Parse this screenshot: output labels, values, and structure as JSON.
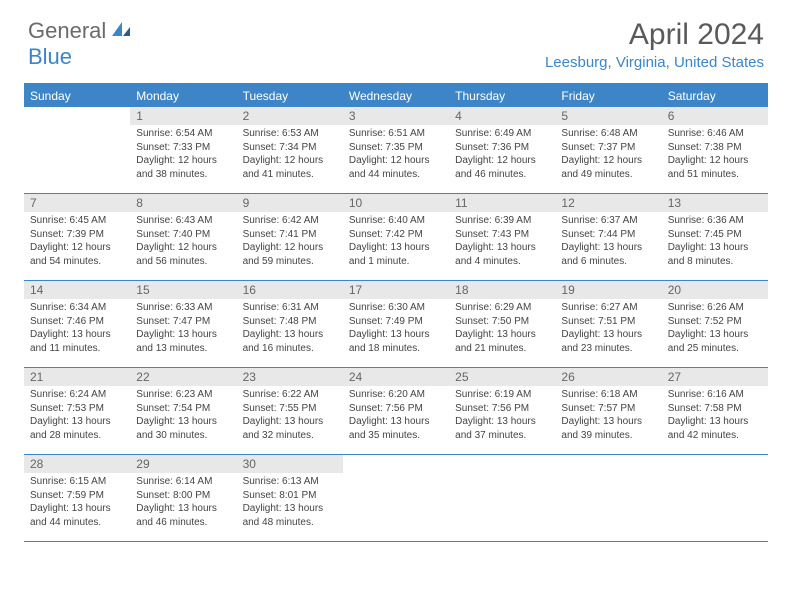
{
  "logo": {
    "part1": "General",
    "part2": "Blue"
  },
  "title": "April 2024",
  "location": "Leesburg, Virginia, United States",
  "colors": {
    "accent": "#3d85c6",
    "header_bg": "#3d85c6",
    "header_text": "#ffffff",
    "date_bar_bg": "#e8e8e8",
    "date_bar_text": "#666666",
    "body_text": "#444444",
    "logo_gray": "#6a6a6a"
  },
  "day_names": [
    "Sunday",
    "Monday",
    "Tuesday",
    "Wednesday",
    "Thursday",
    "Friday",
    "Saturday"
  ],
  "weeks": [
    [
      {
        "date": "",
        "sunrise": "",
        "sunset": "",
        "daylight": ""
      },
      {
        "date": "1",
        "sunrise": "Sunrise: 6:54 AM",
        "sunset": "Sunset: 7:33 PM",
        "daylight": "Daylight: 12 hours and 38 minutes."
      },
      {
        "date": "2",
        "sunrise": "Sunrise: 6:53 AM",
        "sunset": "Sunset: 7:34 PM",
        "daylight": "Daylight: 12 hours and 41 minutes."
      },
      {
        "date": "3",
        "sunrise": "Sunrise: 6:51 AM",
        "sunset": "Sunset: 7:35 PM",
        "daylight": "Daylight: 12 hours and 44 minutes."
      },
      {
        "date": "4",
        "sunrise": "Sunrise: 6:49 AM",
        "sunset": "Sunset: 7:36 PM",
        "daylight": "Daylight: 12 hours and 46 minutes."
      },
      {
        "date": "5",
        "sunrise": "Sunrise: 6:48 AM",
        "sunset": "Sunset: 7:37 PM",
        "daylight": "Daylight: 12 hours and 49 minutes."
      },
      {
        "date": "6",
        "sunrise": "Sunrise: 6:46 AM",
        "sunset": "Sunset: 7:38 PM",
        "daylight": "Daylight: 12 hours and 51 minutes."
      }
    ],
    [
      {
        "date": "7",
        "sunrise": "Sunrise: 6:45 AM",
        "sunset": "Sunset: 7:39 PM",
        "daylight": "Daylight: 12 hours and 54 minutes."
      },
      {
        "date": "8",
        "sunrise": "Sunrise: 6:43 AM",
        "sunset": "Sunset: 7:40 PM",
        "daylight": "Daylight: 12 hours and 56 minutes."
      },
      {
        "date": "9",
        "sunrise": "Sunrise: 6:42 AM",
        "sunset": "Sunset: 7:41 PM",
        "daylight": "Daylight: 12 hours and 59 minutes."
      },
      {
        "date": "10",
        "sunrise": "Sunrise: 6:40 AM",
        "sunset": "Sunset: 7:42 PM",
        "daylight": "Daylight: 13 hours and 1 minute."
      },
      {
        "date": "11",
        "sunrise": "Sunrise: 6:39 AM",
        "sunset": "Sunset: 7:43 PM",
        "daylight": "Daylight: 13 hours and 4 minutes."
      },
      {
        "date": "12",
        "sunrise": "Sunrise: 6:37 AM",
        "sunset": "Sunset: 7:44 PM",
        "daylight": "Daylight: 13 hours and 6 minutes."
      },
      {
        "date": "13",
        "sunrise": "Sunrise: 6:36 AM",
        "sunset": "Sunset: 7:45 PM",
        "daylight": "Daylight: 13 hours and 8 minutes."
      }
    ],
    [
      {
        "date": "14",
        "sunrise": "Sunrise: 6:34 AM",
        "sunset": "Sunset: 7:46 PM",
        "daylight": "Daylight: 13 hours and 11 minutes."
      },
      {
        "date": "15",
        "sunrise": "Sunrise: 6:33 AM",
        "sunset": "Sunset: 7:47 PM",
        "daylight": "Daylight: 13 hours and 13 minutes."
      },
      {
        "date": "16",
        "sunrise": "Sunrise: 6:31 AM",
        "sunset": "Sunset: 7:48 PM",
        "daylight": "Daylight: 13 hours and 16 minutes."
      },
      {
        "date": "17",
        "sunrise": "Sunrise: 6:30 AM",
        "sunset": "Sunset: 7:49 PM",
        "daylight": "Daylight: 13 hours and 18 minutes."
      },
      {
        "date": "18",
        "sunrise": "Sunrise: 6:29 AM",
        "sunset": "Sunset: 7:50 PM",
        "daylight": "Daylight: 13 hours and 21 minutes."
      },
      {
        "date": "19",
        "sunrise": "Sunrise: 6:27 AM",
        "sunset": "Sunset: 7:51 PM",
        "daylight": "Daylight: 13 hours and 23 minutes."
      },
      {
        "date": "20",
        "sunrise": "Sunrise: 6:26 AM",
        "sunset": "Sunset: 7:52 PM",
        "daylight": "Daylight: 13 hours and 25 minutes."
      }
    ],
    [
      {
        "date": "21",
        "sunrise": "Sunrise: 6:24 AM",
        "sunset": "Sunset: 7:53 PM",
        "daylight": "Daylight: 13 hours and 28 minutes."
      },
      {
        "date": "22",
        "sunrise": "Sunrise: 6:23 AM",
        "sunset": "Sunset: 7:54 PM",
        "daylight": "Daylight: 13 hours and 30 minutes."
      },
      {
        "date": "23",
        "sunrise": "Sunrise: 6:22 AM",
        "sunset": "Sunset: 7:55 PM",
        "daylight": "Daylight: 13 hours and 32 minutes."
      },
      {
        "date": "24",
        "sunrise": "Sunrise: 6:20 AM",
        "sunset": "Sunset: 7:56 PM",
        "daylight": "Daylight: 13 hours and 35 minutes."
      },
      {
        "date": "25",
        "sunrise": "Sunrise: 6:19 AM",
        "sunset": "Sunset: 7:56 PM",
        "daylight": "Daylight: 13 hours and 37 minutes."
      },
      {
        "date": "26",
        "sunrise": "Sunrise: 6:18 AM",
        "sunset": "Sunset: 7:57 PM",
        "daylight": "Daylight: 13 hours and 39 minutes."
      },
      {
        "date": "27",
        "sunrise": "Sunrise: 6:16 AM",
        "sunset": "Sunset: 7:58 PM",
        "daylight": "Daylight: 13 hours and 42 minutes."
      }
    ],
    [
      {
        "date": "28",
        "sunrise": "Sunrise: 6:15 AM",
        "sunset": "Sunset: 7:59 PM",
        "daylight": "Daylight: 13 hours and 44 minutes."
      },
      {
        "date": "29",
        "sunrise": "Sunrise: 6:14 AM",
        "sunset": "Sunset: 8:00 PM",
        "daylight": "Daylight: 13 hours and 46 minutes."
      },
      {
        "date": "30",
        "sunrise": "Sunrise: 6:13 AM",
        "sunset": "Sunset: 8:01 PM",
        "daylight": "Daylight: 13 hours and 48 minutes."
      },
      {
        "date": "",
        "sunrise": "",
        "sunset": "",
        "daylight": ""
      },
      {
        "date": "",
        "sunrise": "",
        "sunset": "",
        "daylight": ""
      },
      {
        "date": "",
        "sunrise": "",
        "sunset": "",
        "daylight": ""
      },
      {
        "date": "",
        "sunrise": "",
        "sunset": "",
        "daylight": ""
      }
    ]
  ]
}
